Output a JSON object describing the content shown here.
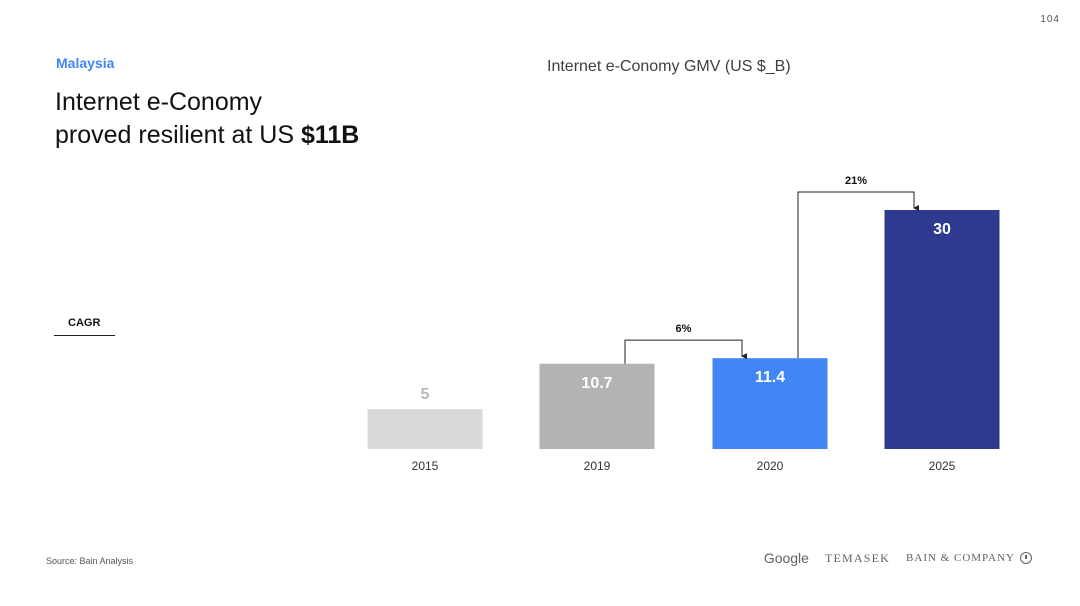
{
  "page_number": "104",
  "region": "Malaysia",
  "headline": {
    "line1": "Internet e-Conomy",
    "line2_prefix": "proved resilient at US ",
    "line2_bold": "$11B"
  },
  "cagr_label": "CAGR",
  "source": "Source: Bain Analysis",
  "logos": {
    "google": "Google",
    "temasek": "TEMASEK",
    "bain": "BAIN & COMPANY"
  },
  "chart_data": {
    "type": "bar",
    "title": "Internet e-Conomy GMV (US $_B)",
    "categories": [
      "2015",
      "2019",
      "2020",
      "2025"
    ],
    "values": [
      5,
      10.7,
      11.4,
      30
    ],
    "value_labels": [
      "5",
      "10.7",
      "11.4",
      "30"
    ],
    "colors": [
      "#d9d9d9",
      "#b3b3b3",
      "#4285f4",
      "#2e3a8f"
    ],
    "label_colors": [
      "#b8b8b8",
      "#ffffff",
      "#ffffff",
      "#ffffff"
    ],
    "ylim": [
      0,
      30
    ],
    "grid": false,
    "cagr_annotations": [
      {
        "from": "2019",
        "to": "2020",
        "label": "6%"
      },
      {
        "from": "2020",
        "to": "2025",
        "label": "21%"
      }
    ]
  }
}
